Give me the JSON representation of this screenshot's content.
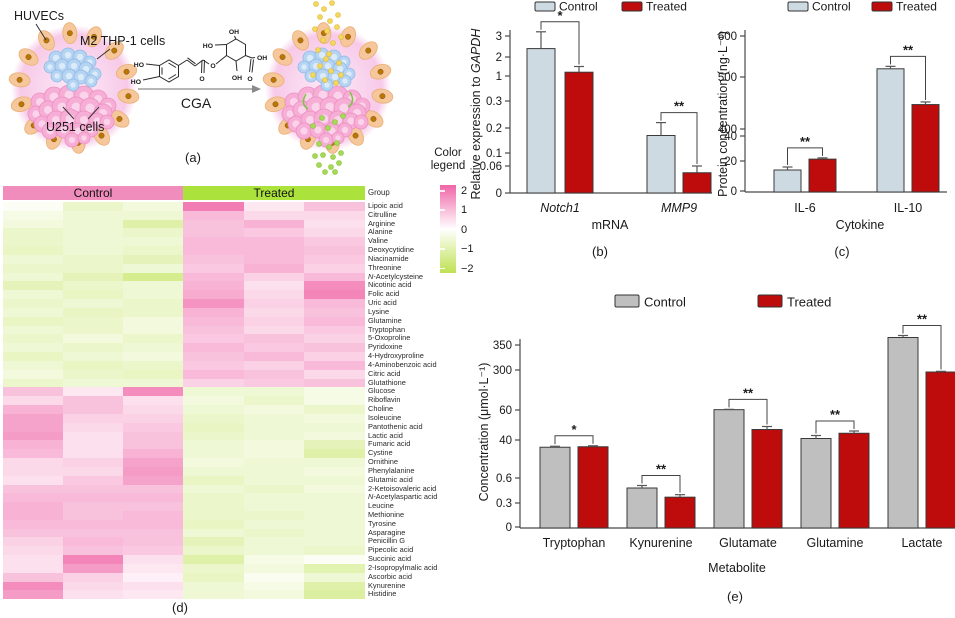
{
  "colors": {
    "control_fill_bc": "#CDDAE2",
    "control_fill_e": "#BFBFBF",
    "treated_fill": "#BE0B0B",
    "bar_stroke": "#3A3A3A",
    "axis": "#4A4A4A",
    "error_bar": "#555555",
    "heat_pink": "#F066A8",
    "heat_green": "#BFE152",
    "group_control_band": "#F18DBC",
    "group_treated_band": "#ACE23C",
    "muted_label": "#A6A6A6",
    "cga_text": "#9B9B9B"
  },
  "panel_a": {
    "caption": "(a)",
    "huvecs_label": "HUVECs",
    "m2_label": "M2 THP-1 cells",
    "u251_label": "U251 cells",
    "arrow_label": "CGA",
    "chem_labels": [
      "HO",
      "HO",
      "HO",
      "OH",
      "OH",
      "OH",
      "O",
      "O",
      "O"
    ]
  },
  "chart_data": [
    {
      "id": "b",
      "type": "bar",
      "caption": "(b)",
      "xlabel": "mRNA",
      "ylabel_parts": [
        {
          "t": "Relative expression to ",
          "i": false
        },
        {
          "t": "GAPDH",
          "i": true
        }
      ],
      "legend": [
        "Control",
        "Treated"
      ],
      "categories": [
        "Notch1",
        "MMP9"
      ],
      "yticks": [
        0,
        0.06,
        0.1,
        0.2,
        0.3,
        1,
        2,
        3
      ],
      "axis_break": true,
      "series": [
        {
          "name": "Control",
          "values": [
            2.4,
            0.17
          ],
          "errors": [
            0.8,
            0.05
          ]
        },
        {
          "name": "Treated",
          "values": [
            1.2,
            0.045
          ],
          "errors": [
            0.3,
            0.015
          ]
        }
      ],
      "significance": [
        "*",
        "**"
      ]
    },
    {
      "id": "c",
      "type": "bar",
      "caption": "(c)",
      "xlabel": "Cytokine",
      "ylabel_parts": [
        {
          "t": "Protein concentration (ng·L⁻¹)",
          "i": false
        }
      ],
      "legend": [
        "Control",
        "Treated"
      ],
      "categories": [
        "IL-6",
        "IL-10"
      ],
      "yticks": [
        0,
        20,
        40,
        400,
        500,
        600
      ],
      "axis_break": true,
      "series": [
        {
          "name": "Control",
          "values": [
            14,
            520
          ],
          "errors": [
            2,
            6
          ]
        },
        {
          "name": "Treated",
          "values": [
            21.5,
            447
          ],
          "errors": [
            1,
            5
          ]
        }
      ],
      "significance": [
        "**",
        "**"
      ]
    },
    {
      "id": "d",
      "type": "heatmap",
      "caption": "(d)",
      "legend_title": "Color legend",
      "legend_ticks": [
        2,
        1,
        0,
        -1,
        -2
      ],
      "group_label": "Group",
      "groups": [
        {
          "name": "Control",
          "columns": 3
        },
        {
          "name": "Treated",
          "columns": 3
        }
      ],
      "value_range": [
        -2,
        2
      ],
      "rows": [
        {
          "name": "Lipoic acid",
          "values": [
            -0.1,
            -0.6,
            -0.4,
            1.7,
            0.3,
            0.8
          ]
        },
        {
          "name": "Citrulline",
          "values": [
            -0.3,
            -0.5,
            -0.5,
            0.9,
            0.5,
            0.5
          ]
        },
        {
          "name": "Arginine",
          "values": [
            -0.4,
            -0.5,
            -1.0,
            0.8,
            1.0,
            0.4
          ]
        },
        {
          "name": "Alanine",
          "values": [
            -0.6,
            -0.5,
            -0.6,
            0.8,
            0.7,
            0.5
          ]
        },
        {
          "name": "Valine",
          "values": [
            -0.6,
            -0.5,
            -0.5,
            0.9,
            0.9,
            0.7
          ]
        },
        {
          "name": "Deoxycytidine",
          "values": [
            -0.7,
            -0.5,
            -0.6,
            0.9,
            0.9,
            0.8
          ]
        },
        {
          "name": "Niacinamide",
          "values": [
            -0.5,
            -0.6,
            -0.8,
            0.8,
            0.9,
            0.7
          ]
        },
        {
          "name": "Threonine",
          "values": [
            -0.6,
            -0.6,
            -0.5,
            0.7,
            1.0,
            0.6
          ]
        },
        {
          "name": "N-Acetylcysteine",
          "values": [
            -0.5,
            -0.8,
            -1.3,
            0.9,
            0.6,
            0.9
          ]
        },
        {
          "name": "Nicotinic acid",
          "values": [
            -0.8,
            -0.6,
            -0.5,
            1.0,
            0.4,
            1.5
          ]
        },
        {
          "name": "Folic acid",
          "values": [
            -0.5,
            -0.7,
            -0.5,
            1.1,
            0.5,
            1.6
          ]
        },
        {
          "name": "Uric acid",
          "values": [
            -0.6,
            -0.5,
            -0.6,
            1.4,
            0.6,
            0.9
          ]
        },
        {
          "name": "Lysine",
          "values": [
            -0.5,
            -0.7,
            -0.6,
            1.0,
            0.5,
            0.8
          ]
        },
        {
          "name": "Glutamine",
          "values": [
            -0.7,
            -0.6,
            -0.4,
            0.9,
            0.6,
            0.9
          ]
        },
        {
          "name": "Tryptophan",
          "values": [
            -0.5,
            -0.6,
            -0.4,
            0.8,
            0.5,
            0.7
          ]
        },
        {
          "name": "5-Oxoproline",
          "values": [
            -0.6,
            -0.4,
            -0.6,
            0.7,
            0.8,
            0.6
          ]
        },
        {
          "name": "Pyridoxine",
          "values": [
            -0.5,
            -0.6,
            -0.5,
            0.9,
            0.7,
            0.8
          ]
        },
        {
          "name": "4-Hydroxyproline",
          "values": [
            -0.7,
            -0.5,
            -0.4,
            0.8,
            0.9,
            0.6
          ]
        },
        {
          "name": "4-Aminobenzoic acid",
          "values": [
            -0.5,
            -0.7,
            -0.6,
            0.7,
            0.6,
            0.9
          ]
        },
        {
          "name": "Citric acid",
          "values": [
            -0.4,
            -0.6,
            -0.7,
            0.9,
            0.8,
            0.5
          ]
        },
        {
          "name": "Glutathione",
          "values": [
            -0.6,
            -0.5,
            -0.5,
            0.6,
            0.7,
            0.8
          ]
        },
        {
          "name": "Glucose",
          "values": [
            0.8,
            0.3,
            1.5,
            -0.5,
            -0.5,
            -0.3
          ]
        },
        {
          "name": "Riboflavin",
          "values": [
            0.5,
            0.8,
            0.4,
            -0.4,
            -0.6,
            -0.3
          ]
        },
        {
          "name": "Choline",
          "values": [
            1.0,
            0.8,
            0.5,
            -0.5,
            -0.4,
            -0.6
          ]
        },
        {
          "name": "Isoleucine",
          "values": [
            1.2,
            0.6,
            0.6,
            -0.6,
            -0.5,
            -0.4
          ]
        },
        {
          "name": "Pantothenic acid",
          "values": [
            1.2,
            0.5,
            0.7,
            -0.7,
            -0.5,
            -0.5
          ]
        },
        {
          "name": "Lactic acid",
          "values": [
            1.3,
            0.4,
            0.8,
            -0.6,
            -0.5,
            -0.4
          ]
        },
        {
          "name": "Fumaric acid",
          "values": [
            1.0,
            0.4,
            0.8,
            -0.5,
            -0.4,
            -0.8
          ]
        },
        {
          "name": "Cystine",
          "values": [
            0.9,
            0.4,
            1.0,
            -0.5,
            -0.4,
            -1.0
          ]
        },
        {
          "name": "Ornithine",
          "values": [
            0.5,
            0.6,
            1.2,
            -0.4,
            -0.5,
            -0.5
          ]
        },
        {
          "name": "Phenylalanine",
          "values": [
            0.5,
            0.5,
            1.3,
            -0.5,
            -0.5,
            -0.4
          ]
        },
        {
          "name": "Glutamic acid",
          "values": [
            0.4,
            0.7,
            1.2,
            -0.7,
            -0.5,
            -0.5
          ]
        },
        {
          "name": "2-Ketoisovaleric acid",
          "values": [
            0.8,
            0.8,
            0.8,
            -0.5,
            -0.6,
            -0.4
          ]
        },
        {
          "name": "N-Acetylaspartic acid",
          "values": [
            0.9,
            0.9,
            0.9,
            -0.6,
            -0.5,
            -0.5
          ]
        },
        {
          "name": "Leucine",
          "values": [
            1.0,
            0.8,
            0.8,
            -0.6,
            -0.5,
            -0.5
          ]
        },
        {
          "name": "Methionine",
          "values": [
            1.0,
            0.8,
            0.9,
            -0.6,
            -0.6,
            -0.5
          ]
        },
        {
          "name": "Tyrosine",
          "values": [
            0.9,
            0.9,
            0.9,
            -0.7,
            -0.5,
            -0.5
          ]
        },
        {
          "name": "Asparagine",
          "values": [
            0.8,
            0.8,
            0.8,
            -0.5,
            -0.6,
            -0.5
          ]
        },
        {
          "name": "Penicillin G",
          "values": [
            0.6,
            0.9,
            0.8,
            -0.8,
            -0.5,
            -0.5
          ]
        },
        {
          "name": "Pipecolic acid",
          "values": [
            0.5,
            0.8,
            0.7,
            -0.6,
            -0.5,
            -0.6
          ]
        },
        {
          "name": "Succinic acid",
          "values": [
            0.4,
            1.6,
            0.4,
            -1.0,
            -0.3,
            -0.1
          ]
        },
        {
          "name": "2-Isopropylmalic acid",
          "values": [
            0.4,
            1.3,
            0.3,
            -0.6,
            -0.4,
            -0.9
          ]
        },
        {
          "name": "Ascorbic acid",
          "values": [
            0.8,
            0.6,
            0.2,
            -0.7,
            -0.2,
            -0.5
          ]
        },
        {
          "name": "Kynurenine",
          "values": [
            1.5,
            0.5,
            0.4,
            -0.5,
            -0.3,
            -1.0
          ]
        },
        {
          "name": "Histidine",
          "values": [
            1.3,
            0.4,
            0.3,
            -0.5,
            -0.4,
            -1.1
          ]
        }
      ]
    },
    {
      "id": "e",
      "type": "bar",
      "caption": "(e)",
      "xlabel": "Metabolite",
      "ylabel_parts": [
        {
          "t": "Concentration (μmol·L⁻¹)",
          "i": false
        }
      ],
      "legend": [
        "Control",
        "Treated"
      ],
      "categories": [
        "Tryptophan",
        "Kynurenine",
        "Glutamate",
        "Glutamine",
        "Lactate"
      ],
      "category_muted": [
        true,
        false,
        false,
        false,
        false
      ],
      "yticks": [
        0,
        0.3,
        0.6,
        40,
        60,
        300,
        350
      ],
      "axis_break": true,
      "series": [
        {
          "name": "Control",
          "values": [
            32.5,
            0.48,
            62,
            41,
            365
          ],
          "errors": [
            1,
            0.03,
            2,
            2,
            4
          ]
        },
        {
          "name": "Treated",
          "values": [
            33,
            0.37,
            47,
            44.5,
            288
          ],
          "errors": [
            1,
            0.03,
            2,
            1.5,
            4
          ]
        }
      ],
      "significance": [
        "*",
        "**",
        "**",
        "**",
        "**"
      ]
    }
  ]
}
